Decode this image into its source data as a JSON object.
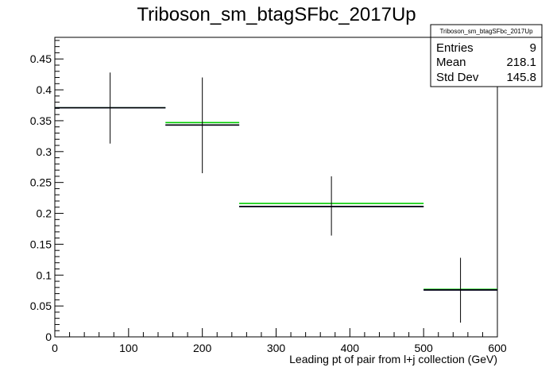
{
  "chart_data": {
    "type": "histogram",
    "title": "Triboson_sm_btagSFbc_2017Up",
    "xlabel": "Leading pt of pair from l+j collection (GeV)",
    "ylabel": "",
    "xlim": [
      0,
      600
    ],
    "ylim": [
      0,
      0.485
    ],
    "x_ticks": [
      0,
      100,
      200,
      300,
      400,
      500,
      600
    ],
    "y_ticks": [
      0,
      0.05,
      0.1,
      0.15,
      0.2,
      0.25,
      0.3,
      0.35,
      0.4,
      0.45
    ],
    "x_tick_labels": [
      "0",
      "100",
      "200",
      "300",
      "400",
      "500",
      "600"
    ],
    "y_tick_labels": [
      "0",
      "0.05",
      "0.1",
      "0.15",
      "0.2",
      "0.25",
      "0.3",
      "0.35",
      "0.4",
      "0.45"
    ],
    "grid": false,
    "legend": "none",
    "bins": [
      {
        "x_low": 0,
        "x_high": 150,
        "center": 75,
        "value": 0.371,
        "err_low": 0.313,
        "err_high": 0.428
      },
      {
        "x_low": 150,
        "x_high": 250,
        "center": 200,
        "value": 0.343,
        "err_low": 0.265,
        "err_high": 0.42
      },
      {
        "x_low": 250,
        "x_high": 500,
        "center": 375,
        "value": 0.211,
        "err_low": 0.164,
        "err_high": 0.26
      },
      {
        "x_low": 500,
        "x_high": 600,
        "center": 550,
        "value": 0.076,
        "err_low": 0.023,
        "err_high": 0.128
      }
    ],
    "series": [
      {
        "name": "",
        "color": "#00cc00",
        "values": [
          0.371,
          0.347,
          0.216,
          0.077
        ]
      },
      {
        "name": "",
        "color": "#000099",
        "values": [
          0.371,
          0.343,
          0.211,
          0.076
        ]
      },
      {
        "name": "",
        "color": "#000000",
        "values": [
          0.371,
          0.343,
          0.211,
          0.076
        ]
      }
    ],
    "stats_box": {
      "title": "Triboson_sm_btagSFbc_2017Up",
      "rows": [
        {
          "label": "Entries",
          "value": "9"
        },
        {
          "label": "Mean",
          "value": "218.1"
        },
        {
          "label": "Std Dev",
          "value": "145.8"
        }
      ]
    }
  }
}
